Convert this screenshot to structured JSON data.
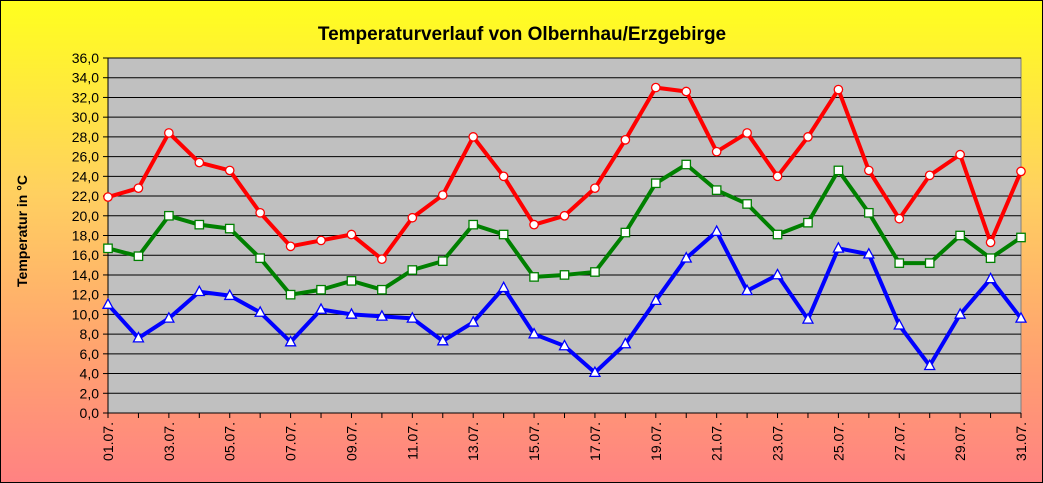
{
  "chart_data": {
    "type": "line",
    "title": "Temperaturverlauf von Olbernhau/Erzgebirge",
    "xlabel": "",
    "ylabel": "Temperatur in  °C",
    "ylim": [
      0,
      36
    ],
    "ytick_step": 2,
    "grid": true,
    "legend": "none",
    "colors": {
      "plot_background": "#c0c0c0",
      "gridline": "#000000",
      "max_line": "#ff0000",
      "avg_line": "#008000",
      "min_line": "#0000ff",
      "marker_fill": "#ffffff"
    },
    "categories": [
      "01.07.",
      "02.07.",
      "03.07.",
      "04.07.",
      "05.07.",
      "06.07.",
      "07.07.",
      "08.07.",
      "09.07.",
      "10.07.",
      "11.07.",
      "12.07.",
      "13.07.",
      "14.07.",
      "15.07.",
      "16.07.",
      "17.07.",
      "18.07.",
      "19.07.",
      "20.07.",
      "21.07.",
      "22.07.",
      "23.07.",
      "24.07.",
      "25.07.",
      "26.07.",
      "27.07.",
      "28.07.",
      "29.07.",
      "30.07.",
      "31.07."
    ],
    "x_tick_labels": [
      "01.07.",
      "03.07.",
      "05.07.",
      "07.07.",
      "09.07.",
      "11.07.",
      "13.07.",
      "15.07.",
      "17.07.",
      "19.07.",
      "21.07.",
      "23.07.",
      "25.07.",
      "27.07.",
      "29.07.",
      "31.07."
    ],
    "series": [
      {
        "key": "max",
        "marker": "circle",
        "color": "#ff0000",
        "values": [
          21.9,
          22.8,
          28.4,
          25.4,
          24.6,
          20.3,
          16.9,
          17.5,
          18.1,
          15.6,
          19.8,
          22.1,
          28.0,
          24.0,
          19.1,
          20.0,
          22.8,
          27.7,
          33.0,
          32.6,
          26.5,
          28.4,
          24.0,
          28.0,
          32.8,
          24.6,
          19.7,
          24.1,
          26.2,
          17.3,
          24.5
        ]
      },
      {
        "key": "avg",
        "marker": "square",
        "color": "#008000",
        "values": [
          16.7,
          15.9,
          20.0,
          19.1,
          18.7,
          15.7,
          12.0,
          12.5,
          13.4,
          12.5,
          14.5,
          15.4,
          19.1,
          18.1,
          13.8,
          14.0,
          14.3,
          18.3,
          23.3,
          25.2,
          22.6,
          21.2,
          18.1,
          19.3,
          24.6,
          20.3,
          15.2,
          15.2,
          18.0,
          15.7,
          17.8
        ]
      },
      {
        "key": "min",
        "marker": "triangle",
        "color": "#0000ff",
        "values": [
          11.0,
          7.6,
          9.6,
          12.3,
          11.9,
          10.2,
          7.2,
          10.5,
          10.0,
          9.8,
          9.6,
          7.3,
          9.2,
          12.7,
          8.0,
          6.8,
          4.1,
          7.0,
          11.4,
          15.7,
          18.4,
          12.4,
          14.0,
          9.5,
          16.7,
          16.1,
          8.9,
          4.8,
          10.0,
          13.6,
          9.6
        ]
      }
    ]
  }
}
